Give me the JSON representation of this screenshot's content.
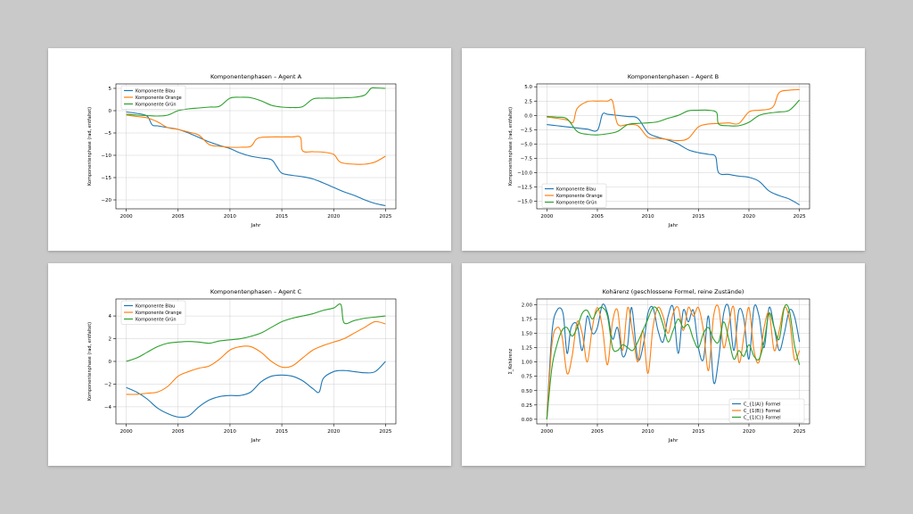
{
  "colors": {
    "blue": "#1f77b4",
    "orange": "#ff7f0e",
    "green": "#2ca02c"
  },
  "chart_data": [
    {
      "type": "line",
      "title": "Komponentenphasen – Agent A",
      "xlabel": "Jahr",
      "ylabel": "Komponentenphase (rad, entfaltet)",
      "xlim": [
        1999,
        2026
      ],
      "ylim": [
        -22,
        6
      ],
      "xticks": [
        2000,
        2005,
        2010,
        2015,
        2020,
        2025
      ],
      "yticks": [
        5,
        0,
        -5,
        -10,
        -15,
        -20
      ],
      "grid": true,
      "legend": "top-left",
      "series": [
        {
          "name": "Komponente Blau",
          "color": "blue",
          "x": [
            2000,
            2001,
            2002,
            2002.5,
            2003,
            2004,
            2005,
            2006,
            2007,
            2008,
            2009,
            2010,
            2011,
            2012,
            2013,
            2014,
            2014.5,
            2015,
            2016,
            2017,
            2018,
            2019,
            2020,
            2021,
            2022,
            2023,
            2024,
            2025
          ],
          "y": [
            -0.3,
            -0.6,
            -1.2,
            -3.2,
            -3.4,
            -3.8,
            -4.2,
            -5.0,
            -6.0,
            -7.0,
            -7.8,
            -8.5,
            -9.5,
            -10.2,
            -10.6,
            -11.0,
            -12.5,
            -14.0,
            -14.5,
            -14.8,
            -15.3,
            -16.2,
            -17.2,
            -18.2,
            -19.0,
            -20.0,
            -20.8,
            -21.3
          ]
        },
        {
          "name": "Komponente Orange",
          "color": "orange",
          "x": [
            2000,
            2001,
            2002,
            2003,
            2004,
            2005,
            2006,
            2007,
            2008,
            2009,
            2010,
            2011,
            2012,
            2012.5,
            2013,
            2014,
            2015,
            2016,
            2016.8,
            2017,
            2018,
            2019,
            2020,
            2020.5,
            2021,
            2022,
            2023,
            2024,
            2025
          ],
          "y": [
            -1.0,
            -1.3,
            -1.6,
            -2.5,
            -3.8,
            -4.2,
            -4.8,
            -5.5,
            -7.6,
            -8.0,
            -8.2,
            -8.2,
            -8.0,
            -6.5,
            -6.0,
            -5.9,
            -5.9,
            -5.9,
            -6.0,
            -9.0,
            -9.2,
            -9.3,
            -9.8,
            -11.3,
            -11.8,
            -12.0,
            -12.0,
            -11.5,
            -10.2
          ]
        },
        {
          "name": "Komponente Grün",
          "color": "green",
          "x": [
            2000,
            2001,
            2002,
            2003,
            2004,
            2005,
            2006,
            2007,
            2008,
            2009,
            2010,
            2011,
            2012,
            2013,
            2014,
            2015,
            2016,
            2017,
            2018,
            2019,
            2020,
            2021,
            2022,
            2023,
            2023.6,
            2024,
            2025
          ],
          "y": [
            -0.8,
            -1.0,
            -1.1,
            -1.2,
            -1.0,
            0.0,
            0.4,
            0.6,
            0.8,
            1.0,
            2.8,
            3.0,
            2.9,
            2.2,
            1.2,
            0.8,
            0.7,
            0.9,
            2.6,
            2.8,
            2.8,
            2.9,
            3.0,
            3.5,
            5.0,
            5.1,
            5.0
          ]
        }
      ]
    },
    {
      "type": "line",
      "title": "Komponentenphasen – Agent B",
      "xlabel": "Jahr",
      "ylabel": "Komponentenphase (rad, entfaltet)",
      "xlim": [
        1999,
        2026
      ],
      "ylim": [
        -16.3,
        5.5
      ],
      "xticks": [
        2000,
        2005,
        2010,
        2015,
        2020,
        2025
      ],
      "yticks": [
        5.0,
        2.5,
        0.0,
        -2.5,
        -5.0,
        -7.5,
        -10.0,
        -12.5,
        -15.0
      ],
      "grid": true,
      "legend": "bottom-left",
      "series": [
        {
          "name": "Komponente Blau",
          "color": "blue",
          "x": [
            2000,
            2001,
            2002,
            2003,
            2004,
            2005,
            2005.5,
            2006,
            2007,
            2008,
            2009,
            2010,
            2011,
            2012,
            2013,
            2014,
            2015,
            2016,
            2016.7,
            2017,
            2018,
            2019,
            2020,
            2021,
            2022,
            2023,
            2024,
            2025
          ],
          "y": [
            -1.6,
            -1.8,
            -2.0,
            -2.2,
            -2.4,
            -2.6,
            0.2,
            0.2,
            0.0,
            -0.2,
            -0.5,
            -3.0,
            -3.8,
            -4.3,
            -5.0,
            -6.0,
            -6.5,
            -6.8,
            -7.2,
            -10.0,
            -10.3,
            -10.6,
            -10.8,
            -11.5,
            -13.2,
            -14.0,
            -14.6,
            -15.6
          ]
        },
        {
          "name": "Komponente Orange",
          "color": "orange",
          "x": [
            2000,
            2001,
            2002,
            2002.6,
            2003,
            2004,
            2005,
            2006,
            2006.5,
            2007,
            2008,
            2009,
            2010,
            2011,
            2012,
            2013,
            2014,
            2015,
            2016,
            2017,
            2018,
            2019,
            2020,
            2021,
            2022,
            2022.5,
            2023,
            2024,
            2025
          ],
          "y": [
            -0.3,
            -0.5,
            -0.8,
            -1.2,
            1.2,
            2.4,
            2.5,
            2.5,
            2.5,
            -1.5,
            -1.6,
            -1.8,
            -3.8,
            -4.0,
            -4.2,
            -4.4,
            -4.0,
            -2.0,
            -1.5,
            -1.4,
            -1.3,
            -1.4,
            0.6,
            0.9,
            1.1,
            1.8,
            4.0,
            4.4,
            4.5
          ]
        },
        {
          "name": "Komponente Grün",
          "color": "green",
          "x": [
            2000,
            2001,
            2002,
            2003,
            2004,
            2005,
            2006,
            2007,
            2008,
            2009,
            2010,
            2011,
            2012,
            2013,
            2014,
            2015,
            2016,
            2016.8,
            2017,
            2018,
            2019,
            2020,
            2021,
            2022,
            2023,
            2024,
            2025
          ],
          "y": [
            -0.2,
            -0.3,
            -0.6,
            -2.8,
            -3.3,
            -3.4,
            -3.2,
            -2.8,
            -1.6,
            -1.4,
            -1.3,
            -1.1,
            -0.5,
            0.0,
            0.8,
            0.9,
            0.9,
            0.5,
            -1.5,
            -1.8,
            -1.8,
            -1.2,
            0.0,
            0.4,
            0.6,
            0.9,
            2.7
          ]
        }
      ]
    },
    {
      "type": "line",
      "title": "Komponentenphasen – Agent C",
      "xlabel": "Jahr",
      "ylabel": "Komponentenphase (rad, entfaltet)",
      "xlim": [
        1999,
        2026
      ],
      "ylim": [
        -5.5,
        5.5
      ],
      "xticks": [
        2000,
        2005,
        2010,
        2015,
        2020,
        2025
      ],
      "yticks": [
        4,
        2,
        0,
        -2,
        -4
      ],
      "grid": true,
      "legend": "top-left",
      "series": [
        {
          "name": "Komponente Blau",
          "color": "blue",
          "x": [
            2000,
            2001,
            2002,
            2003,
            2004,
            2005,
            2006,
            2007,
            2008,
            2009,
            2010,
            2011,
            2012,
            2013,
            2014,
            2015,
            2016,
            2017,
            2018,
            2018.6,
            2019,
            2020,
            2021,
            2022,
            2023,
            2024,
            2025
          ],
          "y": [
            -2.3,
            -2.7,
            -3.3,
            -4.1,
            -4.6,
            -4.9,
            -4.8,
            -4.0,
            -3.4,
            -3.1,
            -3.0,
            -3.0,
            -2.7,
            -1.8,
            -1.3,
            -1.2,
            -1.3,
            -1.7,
            -2.4,
            -2.7,
            -1.5,
            -0.9,
            -0.8,
            -0.9,
            -1.0,
            -0.9,
            0.0
          ]
        },
        {
          "name": "Komponente Orange",
          "color": "orange",
          "x": [
            2000,
            2001,
            2002,
            2003,
            2004,
            2005,
            2006,
            2007,
            2008,
            2009,
            2010,
            2011,
            2012,
            2013,
            2014,
            2015,
            2016,
            2017,
            2018,
            2019,
            2020,
            2021,
            2022,
            2023,
            2024,
            2025
          ],
          "y": [
            -2.9,
            -2.9,
            -2.8,
            -2.7,
            -2.2,
            -1.3,
            -0.9,
            -0.6,
            -0.4,
            0.2,
            1.0,
            1.3,
            1.3,
            0.8,
            0.0,
            -0.5,
            -0.4,
            0.3,
            1.0,
            1.4,
            1.7,
            2.0,
            2.5,
            3.0,
            3.5,
            3.3
          ]
        },
        {
          "name": "Komponente Grün",
          "color": "green",
          "x": [
            2000,
            2001,
            2002,
            2003,
            2004,
            2005,
            2006,
            2007,
            2008,
            2009,
            2010,
            2011,
            2012,
            2013,
            2014,
            2015,
            2016,
            2017,
            2018,
            2019,
            2020,
            2020.7,
            2021,
            2022,
            2023,
            2024,
            2025
          ],
          "y": [
            0.0,
            0.3,
            0.8,
            1.3,
            1.6,
            1.7,
            1.75,
            1.7,
            1.6,
            1.8,
            1.9,
            2.0,
            2.2,
            2.5,
            3.0,
            3.5,
            3.8,
            4.0,
            4.2,
            4.5,
            4.7,
            5.0,
            3.4,
            3.6,
            3.8,
            3.9,
            4.0
          ]
        }
      ]
    },
    {
      "type": "line",
      "title": "Kohärenz (geschlossene Formel, reine Zustände)",
      "xlabel": "Jahr",
      "ylabel": "Σ_Kohärenz",
      "xlim": [
        1999,
        2026
      ],
      "ylim": [
        -0.08,
        2.1
      ],
      "xticks": [
        2000,
        2005,
        2010,
        2015,
        2020,
        2025
      ],
      "yticks": [
        2.0,
        1.75,
        1.5,
        1.25,
        1.0,
        0.75,
        0.5,
        0.25,
        0.0
      ],
      "grid": true,
      "legend": "bottom-right",
      "series": [
        {
          "name": "C_{1(A)} Formel",
          "color": "blue",
          "x": [
            2000,
            2000.5,
            2001,
            2001.6,
            2002,
            2002.4,
            2003,
            2003.5,
            2004,
            2004.5,
            2005,
            2005.5,
            2006,
            2006.5,
            2007,
            2007.5,
            2008,
            2008.4,
            2009,
            2009.6,
            2010,
            2010.5,
            2011,
            2011.5,
            2012,
            2012.5,
            2013,
            2013.5,
            2014,
            2014.5,
            2015,
            2015.5,
            2016,
            2016.5,
            2017,
            2017.5,
            2018,
            2018.5,
            2019,
            2019.5,
            2020,
            2020.5,
            2021,
            2021.5,
            2022,
            2022.5,
            2023,
            2023.5,
            2024,
            2024.5,
            2025
          ],
          "y": [
            0.0,
            1.5,
            1.9,
            1.85,
            1.15,
            1.6,
            1.65,
            1.2,
            1.8,
            1.5,
            1.6,
            2.0,
            1.85,
            1.4,
            1.6,
            1.1,
            1.3,
            1.95,
            1.05,
            1.35,
            1.85,
            1.95,
            1.55,
            1.35,
            1.8,
            1.95,
            1.15,
            1.9,
            1.7,
            1.9,
            1.25,
            1.05,
            1.8,
            0.65,
            1.05,
            1.85,
            1.95,
            1.2,
            1.9,
            1.75,
            1.05,
            1.95,
            1.8,
            1.25,
            1.95,
            1.6,
            1.2,
            1.5,
            1.9,
            1.8,
            1.35
          ]
        },
        {
          "name": "C_{1(B)} Formel",
          "color": "orange",
          "x": [
            2000,
            2000.5,
            2001,
            2001.5,
            2002,
            2002.5,
            2003,
            2003.5,
            2004,
            2004.5,
            2005,
            2005.5,
            2006,
            2006.5,
            2007,
            2007.5,
            2008,
            2008.5,
            2009,
            2009.5,
            2010,
            2010.5,
            2011,
            2011.5,
            2012,
            2012.5,
            2013,
            2013.5,
            2014,
            2014.5,
            2015,
            2015.5,
            2016,
            2016.5,
            2017,
            2017.5,
            2018,
            2018.5,
            2019,
            2019.5,
            2020,
            2020.5,
            2021,
            2021.5,
            2022,
            2022.5,
            2023,
            2023.5,
            2024,
            2024.5,
            2025
          ],
          "y": [
            0.0,
            1.3,
            1.6,
            1.45,
            0.8,
            1.1,
            1.7,
            1.5,
            1.0,
            1.6,
            1.95,
            1.6,
            0.95,
            1.7,
            1.9,
            1.2,
            1.95,
            1.5,
            1.0,
            1.55,
            0.8,
            1.6,
            1.95,
            1.8,
            1.5,
            1.85,
            1.95,
            1.55,
            1.95,
            1.8,
            1.95,
            1.55,
            0.85,
            1.8,
            1.95,
            1.25,
            1.65,
            1.95,
            1.0,
            1.45,
            1.95,
            1.2,
            1.0,
            1.6,
            1.85,
            1.2,
            1.55,
            1.95,
            1.75,
            1.05,
            1.2
          ]
        },
        {
          "name": "C_{1(C)} Formel",
          "color": "green",
          "x": [
            2000,
            2000.5,
            2001,
            2001.5,
            2002,
            2002.5,
            2003,
            2003.5,
            2004,
            2004.5,
            2005,
            2005.5,
            2006,
            2006.5,
            2007,
            2007.5,
            2008,
            2008.5,
            2009,
            2009.5,
            2010,
            2010.5,
            2011,
            2011.5,
            2012,
            2012.5,
            2013,
            2013.5,
            2014,
            2014.5,
            2015,
            2015.5,
            2016,
            2016.5,
            2017,
            2017.5,
            2018,
            2018.5,
            2019,
            2019.5,
            2020,
            2020.5,
            2021,
            2021.5,
            2022,
            2022.5,
            2023,
            2023.5,
            2024,
            2024.5,
            2025
          ],
          "y": [
            0.0,
            0.9,
            1.3,
            1.55,
            1.6,
            1.45,
            1.6,
            1.85,
            1.9,
            1.75,
            1.9,
            1.95,
            1.8,
            1.25,
            1.2,
            1.3,
            1.25,
            1.2,
            1.35,
            1.55,
            1.75,
            1.95,
            1.9,
            1.65,
            1.35,
            1.55,
            1.75,
            1.6,
            1.65,
            1.4,
            1.25,
            1.5,
            1.6,
            1.4,
            1.35,
            1.7,
            1.4,
            1.05,
            1.2,
            1.1,
            1.3,
            1.1,
            1.05,
            1.35,
            1.85,
            1.6,
            1.4,
            1.95,
            1.9,
            1.3,
            0.95
          ]
        }
      ]
    }
  ]
}
